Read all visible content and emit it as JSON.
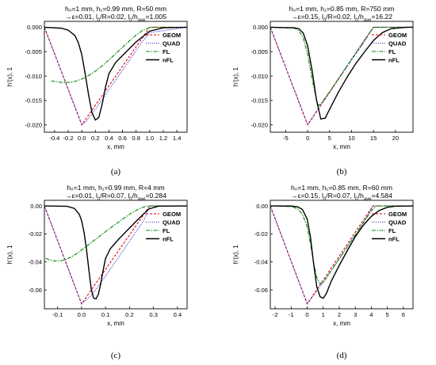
{
  "chart_data": [
    {
      "id": "a",
      "type": "line",
      "caption": "(a)",
      "title": "h₀=1 mm, h₁=0.99 mm, R=50 mm",
      "subtitle": "ε=0.01, l₀/R=0.02, l₀/h_ave=1.005",
      "subtitle_parts": [
        "ε=0.01, l",
        "0",
        "/R=0.02, l",
        "0",
        "/h",
        "ave",
        "=1.005"
      ],
      "xlabel": "x, mm",
      "ylabel": "h'(x), 1",
      "xlim": [
        -0.55,
        1.55
      ],
      "ylim": [
        -0.0215,
        0.0012
      ],
      "xticks": [
        -0.4,
        -0.2,
        0.0,
        0.2,
        0.4,
        0.6,
        0.8,
        1.0,
        1.2,
        1.4
      ],
      "xtick_labels": [
        "-0.4",
        "-0.2",
        "0.0",
        "0.2",
        "0.4",
        "0.6",
        "0.8",
        "1.0",
        "1.2",
        "1.4"
      ],
      "yticks": [
        0.0,
        -0.005,
        -0.01,
        -0.015,
        -0.02
      ],
      "ytick_labels": [
        "0.000",
        "-0.005",
        "-0.010",
        "-0.015",
        "-0.020"
      ],
      "legend": "top-right",
      "series": [
        {
          "name": "GEOM",
          "color": "#e8000b",
          "dash": "3,2",
          "x": [
            -0.55,
            0.0,
            1.0,
            1.55
          ],
          "y": [
            0,
            -0.02,
            0,
            0
          ]
        },
        {
          "name": "QUAD",
          "color": "#1f1fd1",
          "dash": "1,1.6",
          "x": [
            -0.55,
            0.0,
            0.05,
            0.1,
            0.2,
            0.3,
            0.4,
            0.5,
            0.6,
            0.7,
            0.8,
            0.9,
            0.95,
            1.0,
            1.55
          ],
          "y": [
            0,
            -0.0199,
            -0.0195,
            -0.0187,
            -0.0168,
            -0.0148,
            -0.0128,
            -0.0108,
            -0.0088,
            -0.0068,
            -0.0048,
            -0.0028,
            -0.0019,
            -0.0011,
            0
          ]
        },
        {
          "name": "FL",
          "color": "#008a00",
          "dash": "5,1.5,1.5,1.5",
          "x": [
            -0.45,
            -0.3,
            -0.2,
            -0.1,
            0.0,
            0.1,
            0.2,
            0.3,
            0.4,
            0.5,
            0.6,
            0.7,
            0.8,
            0.9,
            1.0,
            1.05,
            1.2,
            1.4
          ],
          "y": [
            -0.011,
            -0.0113,
            -0.0113,
            -0.0111,
            -0.0106,
            -0.0099,
            -0.009,
            -0.0079,
            -0.0067,
            -0.0054,
            -0.0041,
            -0.0028,
            -0.0016,
            -0.0006,
            -0.0001,
            0,
            0,
            0
          ]
        },
        {
          "name": "nFL",
          "color": "#000000",
          "dash": "",
          "x": [
            -0.55,
            -0.3,
            -0.2,
            -0.1,
            -0.05,
            0.0,
            0.05,
            0.1,
            0.15,
            0.2,
            0.25,
            0.3,
            0.35,
            0.4,
            0.5,
            0.6,
            0.8,
            1.0,
            1.2,
            1.55
          ],
          "y": [
            0,
            -0.0002,
            -0.0006,
            -0.0017,
            -0.0032,
            -0.0056,
            -0.0095,
            -0.0138,
            -0.0175,
            -0.019,
            -0.0185,
            -0.0158,
            -0.0122,
            -0.0095,
            -0.0072,
            -0.0058,
            -0.003,
            -0.0008,
            -0.0001,
            0
          ]
        }
      ]
    },
    {
      "id": "b",
      "type": "line",
      "caption": "(b)",
      "title": "h₀=1 mm, h₁=0.85 mm, R=750 mm",
      "subtitle": "ε=0.15, l₀/R=0.02, l₀/h_ave=16.22",
      "subtitle_parts": [
        "ε=0.15, l",
        "0",
        "/R=0.02, l",
        "0",
        "/h",
        "ave",
        "=16.22"
      ],
      "xlabel": "x, mm",
      "ylabel": "h'(x), 1",
      "xlim": [
        -8.5,
        24
      ],
      "ylim": [
        -0.0215,
        0.0012
      ],
      "xticks": [
        -5,
        0,
        5,
        10,
        15,
        20
      ],
      "xtick_labels": [
        "-5",
        "0",
        "5",
        "10",
        "15",
        "20"
      ],
      "yticks": [
        0.0,
        -0.005,
        -0.01,
        -0.015,
        -0.02
      ],
      "ytick_labels": [
        "0.000",
        "-0.005",
        "-0.010",
        "-0.015",
        "-0.020"
      ],
      "legend": "top-right",
      "series": [
        {
          "name": "GEOM",
          "color": "#e8000b",
          "dash": "3,2",
          "x": [
            -8.5,
            0.0,
            15.0,
            24.0
          ],
          "y": [
            0,
            -0.02,
            0,
            0
          ]
        },
        {
          "name": "QUAD",
          "color": "#1f1fd1",
          "dash": "1,1.6",
          "x": [
            -8.5,
            0.0,
            1.0,
            2.0,
            3.0,
            5.0,
            7.0,
            9.0,
            11.0,
            13.0,
            14.0,
            15.0,
            24.0
          ],
          "y": [
            0,
            -0.0199,
            -0.0186,
            -0.0172,
            -0.0159,
            -0.0133,
            -0.0105,
            -0.0078,
            -0.0051,
            -0.0025,
            -0.0012,
            0,
            0
          ]
        },
        {
          "name": "FL",
          "color": "#008a00",
          "dash": "5,1.5,1.5,1.5",
          "x": [
            -8.5,
            -3.0,
            -2.0,
            -1.0,
            0.0,
            1.0,
            2.0,
            2.5,
            3.0,
            5.0,
            7.0,
            9.0,
            11.0,
            13.0,
            14.0,
            15.0,
            24.0
          ],
          "y": [
            0,
            -0.0002,
            -0.0007,
            -0.0022,
            -0.0055,
            -0.0105,
            -0.0148,
            -0.016,
            -0.0157,
            -0.0132,
            -0.0106,
            -0.008,
            -0.0054,
            -0.0028,
            -0.0013,
            0,
            0
          ]
        },
        {
          "name": "nFL",
          "color": "#000000",
          "dash": "",
          "x": [
            -8.5,
            -3.0,
            -2.0,
            -1.0,
            0.0,
            1.0,
            2.0,
            3.0,
            4.0,
            5.0,
            7.0,
            9.0,
            11.0,
            13.0,
            15.0,
            17.0,
            19.0,
            21.0,
            23.0,
            24.0
          ],
          "y": [
            0,
            -0.0001,
            -0.0003,
            -0.0012,
            -0.0038,
            -0.0088,
            -0.0148,
            -0.0188,
            -0.0186,
            -0.0168,
            -0.0133,
            -0.0102,
            -0.0074,
            -0.005,
            -0.0027,
            -0.0011,
            -0.0003,
            -0.0001,
            0,
            0
          ]
        }
      ]
    },
    {
      "id": "c",
      "type": "line",
      "caption": "(c)",
      "title": "h₀=1 mm, h₁=0.99 mm, R=4 mm",
      "subtitle": "ε=0.01, l₀/R=0.07, l₀/h_ave=0.284",
      "subtitle_parts": [
        "ε=0.01, l",
        "0",
        "/R=0.07, l",
        "0",
        "/h",
        "ave",
        "=0.284"
      ],
      "xlabel": "x, mm",
      "ylabel": "h'(x), 1",
      "xlim": [
        -0.155,
        0.44
      ],
      "ylim": [
        -0.0735,
        0.004
      ],
      "xticks": [
        -0.1,
        0.0,
        0.1,
        0.2,
        0.3,
        0.4
      ],
      "xtick_labels": [
        "-0.1",
        "0.0",
        "0.1",
        "0.2",
        "0.3",
        "0.4"
      ],
      "yticks": [
        0.0,
        -0.02,
        -0.04,
        -0.06
      ],
      "ytick_labels": [
        "0.00",
        "-0.02",
        "-0.04",
        "-0.06"
      ],
      "legend": "top-right",
      "series": [
        {
          "name": "GEOM",
          "color": "#e8000b",
          "dash": "3,2",
          "x": [
            -0.155,
            0.0,
            0.284,
            0.44
          ],
          "y": [
            0,
            -0.07,
            0,
            0
          ]
        },
        {
          "name": "QUAD",
          "color": "#1f1fd1",
          "dash": "1,1.6",
          "x": [
            -0.155,
            0.0,
            0.02,
            0.04,
            0.06,
            0.1,
            0.14,
            0.18,
            0.22,
            0.26,
            0.284,
            0.44
          ],
          "y": [
            0,
            -0.0698,
            -0.0672,
            -0.0638,
            -0.0596,
            -0.0501,
            -0.0402,
            -0.0302,
            -0.0202,
            -0.0102,
            0,
            0
          ]
        },
        {
          "name": "FL",
          "color": "#008a00",
          "dash": "5,1.5,1.5,1.5",
          "x": [
            -0.15,
            -0.12,
            -0.1,
            -0.08,
            -0.06,
            -0.04,
            -0.02,
            0.0,
            0.04,
            0.08,
            0.12,
            0.16,
            0.2,
            0.24,
            0.27,
            0.29,
            0.44
          ],
          "y": [
            -0.0375,
            -0.0392,
            -0.0395,
            -0.039,
            -0.0378,
            -0.0362,
            -0.034,
            -0.0315,
            -0.0262,
            -0.021,
            -0.0158,
            -0.0108,
            -0.006,
            -0.002,
            -0.0002,
            0,
            0
          ]
        },
        {
          "name": "nFL",
          "color": "#000000",
          "dash": "",
          "x": [
            -0.155,
            -0.06,
            -0.03,
            -0.01,
            0.0,
            0.01,
            0.02,
            0.03,
            0.04,
            0.05,
            0.06,
            0.07,
            0.08,
            0.09,
            0.1,
            0.12,
            0.16,
            0.2,
            0.24,
            0.28,
            0.32,
            0.44
          ],
          "y": [
            0,
            -0.0003,
            -0.0018,
            -0.0058,
            -0.0105,
            -0.0185,
            -0.0302,
            -0.045,
            -0.059,
            -0.0658,
            -0.0665,
            -0.0632,
            -0.0555,
            -0.046,
            -0.0375,
            -0.0305,
            -0.0228,
            -0.0158,
            -0.0088,
            -0.0022,
            -0.0002,
            0
          ]
        }
      ]
    },
    {
      "id": "d",
      "type": "line",
      "caption": "(d)",
      "title": "h₀=1 mm, h₁=0.85 mm, R=60 mm",
      "subtitle": "ε=0.15, l₀/R=0.07, l₀/h_ave=4.584",
      "subtitle_parts": [
        "ε=0.15, l",
        "0",
        "/R=0.07, l",
        "0",
        "/h",
        "ave",
        "=4.584"
      ],
      "xlabel": "x, mm",
      "ylabel": "h'(x), 1",
      "xlim": [
        -2.3,
        6.6
      ],
      "ylim": [
        -0.0735,
        0.004
      ],
      "xticks": [
        -2,
        -1,
        0,
        1,
        2,
        3,
        4,
        5,
        6
      ],
      "xtick_labels": [
        "-2",
        "-1",
        "0",
        "1",
        "2",
        "3",
        "4",
        "5",
        "6"
      ],
      "yticks": [
        0.0,
        -0.02,
        -0.04,
        -0.06
      ],
      "ytick_labels": [
        "0.00",
        "-0.02",
        "-0.04",
        "-0.06"
      ],
      "legend": "top-right",
      "series": [
        {
          "name": "GEOM",
          "color": "#e8000b",
          "dash": "3,2",
          "x": [
            -2.3,
            0.0,
            4.1,
            6.6
          ],
          "y": [
            0,
            -0.07,
            0,
            0
          ]
        },
        {
          "name": "QUAD",
          "color": "#1f1fd1",
          "dash": "1,1.6",
          "x": [
            -2.3,
            0.0,
            0.3,
            0.6,
            1.0,
            1.5,
            2.0,
            2.5,
            3.0,
            3.5,
            4.1,
            6.6
          ],
          "y": [
            0,
            -0.0698,
            -0.0655,
            -0.0608,
            -0.0545,
            -0.0462,
            -0.0378,
            -0.0292,
            -0.0207,
            -0.0121,
            0,
            0
          ]
        },
        {
          "name": "FL",
          "color": "#008a00",
          "dash": "5,1.5,1.5,1.5",
          "x": [
            -2.3,
            -1.0,
            -0.6,
            -0.3,
            0.0,
            0.2,
            0.4,
            0.6,
            0.8,
            1.0,
            1.5,
            2.0,
            2.5,
            3.0,
            3.5,
            4.0,
            4.3,
            6.6
          ],
          "y": [
            0,
            -0.0005,
            -0.002,
            -0.0058,
            -0.015,
            -0.0268,
            -0.0405,
            -0.0512,
            -0.0555,
            -0.0548,
            -0.0462,
            -0.0378,
            -0.0292,
            -0.0207,
            -0.012,
            -0.0035,
            0,
            0
          ]
        },
        {
          "name": "nFL",
          "color": "#000000",
          "dash": "",
          "x": [
            -2.3,
            -1.0,
            -0.6,
            -0.3,
            0.0,
            0.2,
            0.4,
            0.6,
            0.8,
            1.0,
            1.2,
            1.5,
            2.0,
            2.5,
            3.0,
            3.5,
            4.0,
            4.5,
            5.0,
            5.5,
            6.6
          ],
          "y": [
            0,
            -0.0001,
            -0.0006,
            -0.0025,
            -0.0095,
            -0.022,
            -0.0412,
            -0.0578,
            -0.0648,
            -0.066,
            -0.0625,
            -0.0538,
            -0.0425,
            -0.032,
            -0.022,
            -0.0138,
            -0.0075,
            -0.0032,
            -0.001,
            -0.0002,
            0
          ]
        }
      ]
    }
  ]
}
